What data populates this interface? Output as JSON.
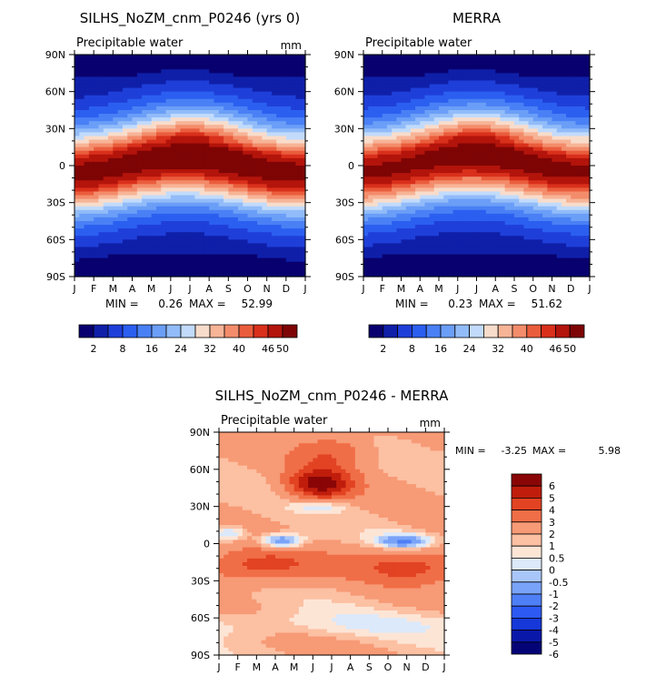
{
  "chart_data": [
    {
      "type": "heatmap",
      "title": "SILHS_NoZM_cnm_P0246 (yrs 0)",
      "subtitle": "Precipitable water",
      "units": "mm",
      "x_ticks": [
        "J",
        "F",
        "M",
        "A",
        "M",
        "J",
        "J",
        "A",
        "S",
        "O",
        "N",
        "D",
        "J"
      ],
      "y_ticks": [
        "90N",
        "60N",
        "30N",
        "0",
        "30S",
        "60S",
        "90S"
      ],
      "y_range": [
        -90,
        90
      ],
      "stats": {
        "min_label": "MIN =",
        "min": "0.26",
        "max_label": "MAX =",
        "max": "52.99"
      },
      "colorbar": {
        "levels": [
          2,
          5,
          8,
          12,
          16,
          20,
          24,
          28,
          32,
          36,
          40,
          43,
          46,
          50
        ],
        "labels": [
          "2",
          "8",
          "16",
          "24",
          "32",
          "40",
          "46",
          "50"
        ]
      }
    },
    {
      "type": "heatmap",
      "title": "MERRA",
      "subtitle": "Precipitable water",
      "units": "",
      "x_ticks": [
        "J",
        "F",
        "M",
        "A",
        "M",
        "J",
        "J",
        "A",
        "S",
        "O",
        "N",
        "D",
        "J"
      ],
      "y_ticks": [
        "90N",
        "60N",
        "30N",
        "0",
        "30S",
        "60S",
        "90S"
      ],
      "y_range": [
        -90,
        90
      ],
      "stats": {
        "min_label": "MIN =",
        "min": "0.23",
        "max_label": "MAX =",
        "max": "51.62"
      },
      "colorbar": {
        "levels": [
          2,
          5,
          8,
          12,
          16,
          20,
          24,
          28,
          32,
          36,
          40,
          43,
          46,
          50
        ],
        "labels": [
          "2",
          "8",
          "16",
          "24",
          "32",
          "40",
          "46",
          "50"
        ]
      }
    },
    {
      "type": "heatmap",
      "title": "SILHS_NoZM_cnm_P0246 - MERRA",
      "subtitle": "Precipitable water",
      "units": "mm",
      "x_ticks": [
        "J",
        "F",
        "M",
        "A",
        "M",
        "J",
        "J",
        "A",
        "S",
        "O",
        "N",
        "D",
        "J"
      ],
      "y_ticks": [
        "90N",
        "60N",
        "30N",
        "0",
        "30S",
        "60S",
        "90S"
      ],
      "y_range": [
        -90,
        90
      ],
      "stats": {
        "min_label": "MIN =",
        "min": "-3.25",
        "max_label": "MAX =",
        "max": "5.98"
      },
      "colorbar": {
        "levels": [
          -6,
          -5,
          -4,
          -3,
          -2,
          -1,
          -0.5,
          0,
          0.5,
          1,
          2,
          3,
          4,
          5,
          6
        ],
        "labels": [
          "6",
          "5",
          "4",
          "3",
          "2",
          "1",
          "0.5",
          "0",
          "-0.5",
          "-1",
          "-2",
          "-3",
          "-4",
          "-5",
          "-6"
        ]
      }
    }
  ],
  "palettes": {
    "sequential": [
      "#08006e",
      "#0f1fa8",
      "#1f3fd9",
      "#2b5ff0",
      "#4a80f5",
      "#6b9ef7",
      "#92bcf9",
      "#c2dbfb",
      "#f8dccb",
      "#f7b497",
      "#f38c6b",
      "#ea5d3c",
      "#d9301c",
      "#b3140b",
      "#7e0505"
    ],
    "diverging": [
      "#040477",
      "#0a18aa",
      "#1638d8",
      "#2d5af2",
      "#4f7ff6",
      "#79a3f8",
      "#a9c6fa",
      "#dbe9fb",
      "#fde5d6",
      "#fcc0a2",
      "#f79a76",
      "#f06e47",
      "#e24322",
      "#c01d0c",
      "#8a0606"
    ]
  }
}
